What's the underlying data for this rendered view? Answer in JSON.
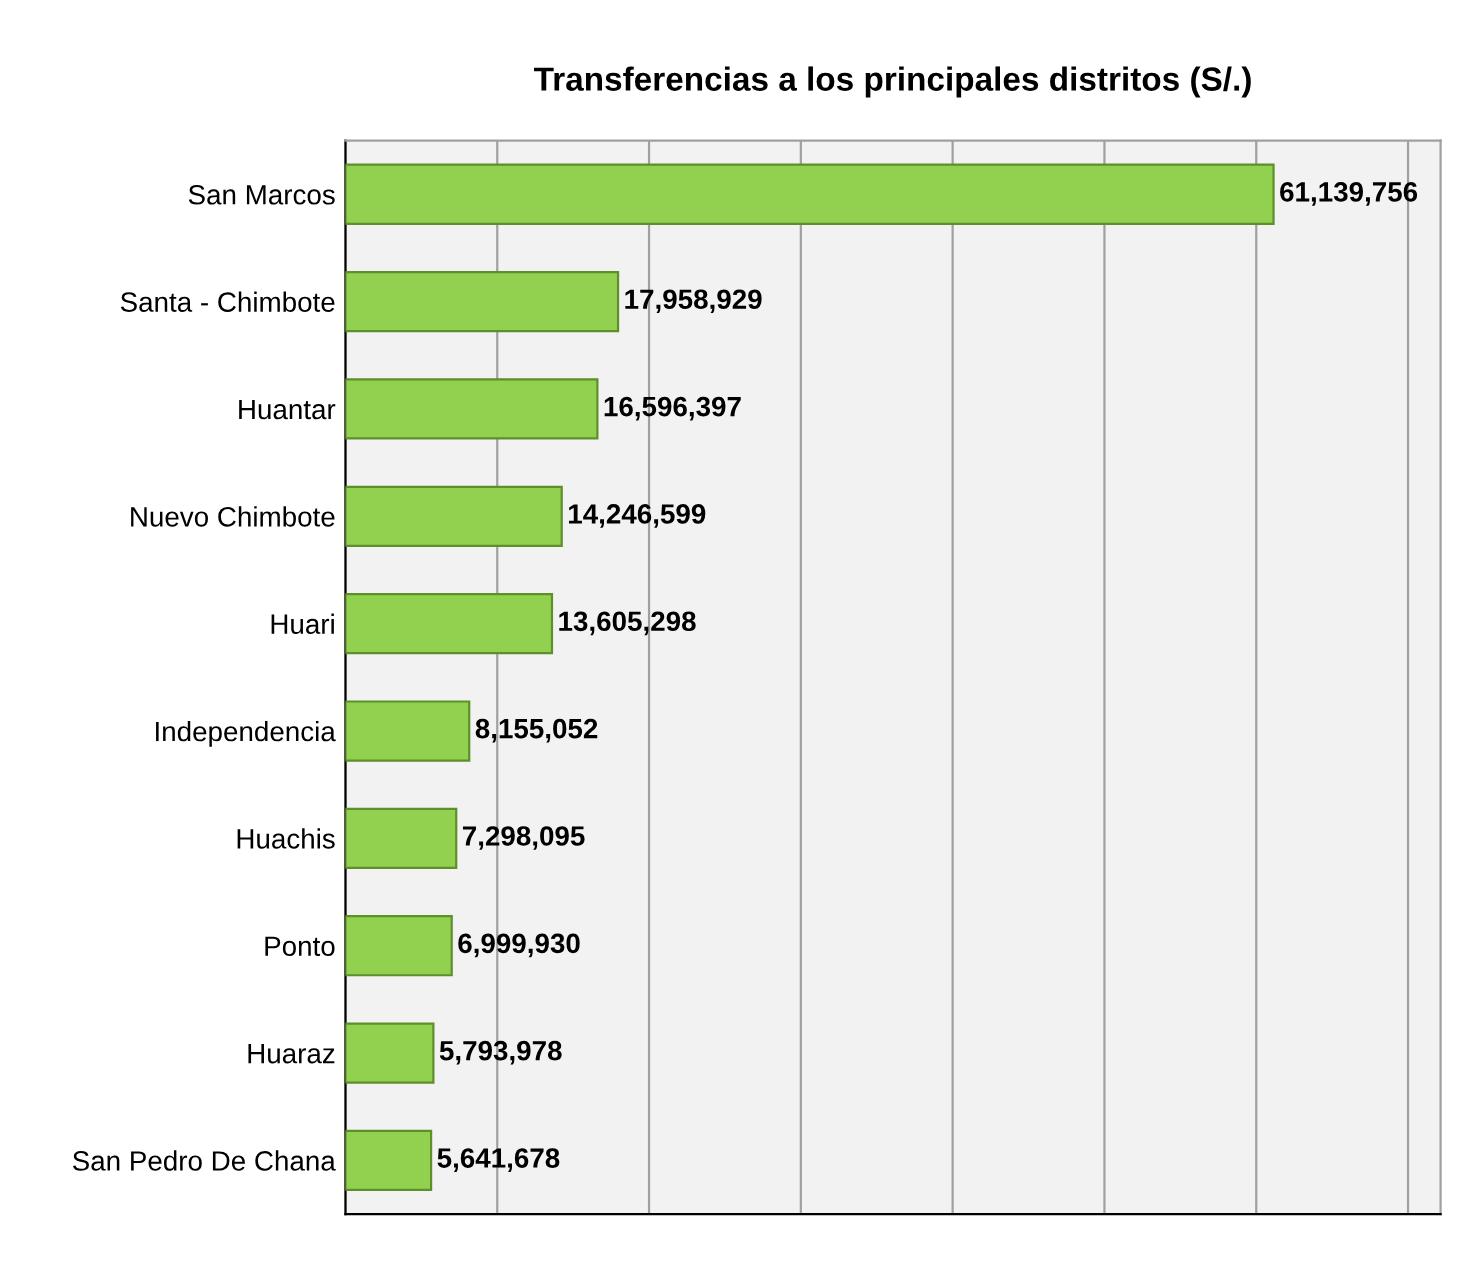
{
  "chart_data": {
    "type": "bar",
    "orientation": "horizontal",
    "title": "Transferencias a los principales distritos (S/.)",
    "categories": [
      "San Marcos",
      "Santa - Chimbote",
      "Huantar",
      "Nuevo Chimbote",
      "Huari",
      "Independencia",
      "Huachis",
      "Ponto",
      "Huaraz",
      "San Pedro De Chana"
    ],
    "values": [
      61139756,
      17958929,
      16596397,
      14246599,
      13605298,
      8155052,
      7298095,
      6999930,
      5793978,
      5641678
    ],
    "color": "#92d050",
    "value_labels": [
      "61,139,756",
      "17,958,929",
      "16,596,397",
      "14,246,599",
      "13,605,298",
      "8,155,052",
      "7,298,095",
      "6,999,930",
      "5,793,978",
      "5,641,678"
    ],
    "grid": "x",
    "tick_labels": "y"
  }
}
